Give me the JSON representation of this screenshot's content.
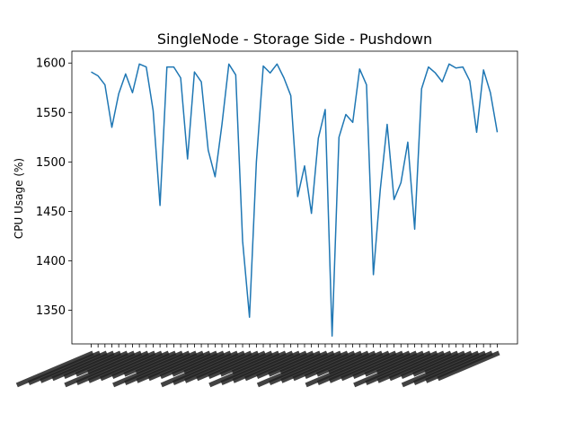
{
  "chart_data": {
    "type": "line",
    "title": "SingleNode - Storage Side - Pushdown",
    "xlabel": "",
    "ylabel": "CPU Usage (%)",
    "ylim": [
      1316,
      1612
    ],
    "yticks": [
      1350,
      1400,
      1450,
      1500,
      1550,
      1600
    ],
    "grid": false,
    "legend": "none",
    "line_color": "#1f77b4",
    "series": [
      {
        "values": [
          1591,
          1587,
          1578,
          1535,
          1569,
          1589,
          1570,
          1599,
          1596,
          1552,
          1456,
          1596,
          1596,
          1585,
          1503,
          1591,
          1581,
          1512,
          1485,
          1538,
          1599,
          1588,
          1420,
          1343,
          1500,
          1597,
          1590,
          1599,
          1585,
          1567,
          1465,
          1496,
          1448,
          1524,
          1553,
          1324,
          1525,
          1548,
          1540,
          1594,
          1578,
          1386,
          1472,
          1538,
          1462,
          1479,
          1520,
          1432,
          1574,
          1596,
          1590,
          1581,
          1599,
          1595,
          1596,
          1582,
          1530,
          1593,
          1570,
          1530
        ]
      }
    ]
  }
}
